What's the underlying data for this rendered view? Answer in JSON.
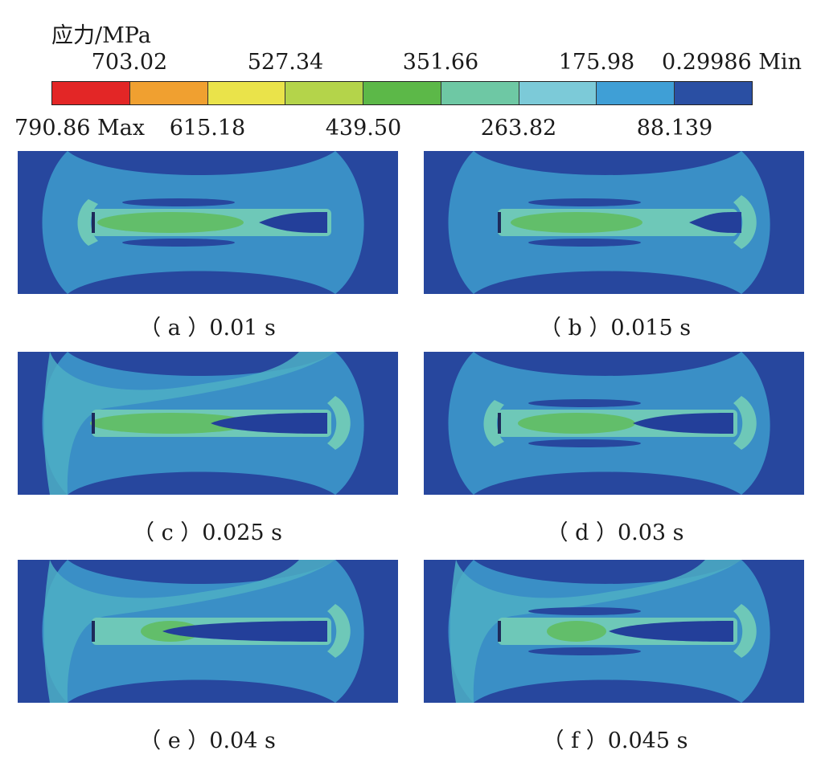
{
  "legend": {
    "title": "应力/MPa",
    "top_labels": [
      "703.02",
      "527.34",
      "351.66",
      "175.98",
      "0.29986 Min"
    ],
    "bottom_labels": [
      "790.86 Max",
      "615.18",
      "439.50",
      "263.82",
      "88.139"
    ],
    "colors": [
      "#e32626",
      "#f0a030",
      "#eae34a",
      "#b4d44a",
      "#5cb848",
      "#6ec8a4",
      "#7ccad8",
      "#3f9fd6",
      "#2a4fa3"
    ]
  },
  "palette": {
    "background": "#27479e",
    "outer": "#3a8fc6",
    "mid": "#4dafc4",
    "light": "#6ec8b8",
    "green": "#62be6a",
    "core": "#233f9a"
  },
  "panels": [
    {
      "caption": "（ a ）0.01 s"
    },
    {
      "caption": "（ b ）0.015 s"
    },
    {
      "caption": "（ c ）0.025 s"
    },
    {
      "caption": "（ d ）0.03 s"
    },
    {
      "caption": "（ e ）0.04 s"
    },
    {
      "caption": "（ f ）0.045 s"
    }
  ]
}
